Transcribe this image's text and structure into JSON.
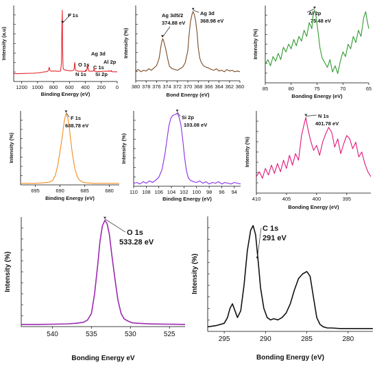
{
  "chart_data": [
    {
      "type": "line",
      "xlabel": "Binding Energy (eV)",
      "ylabel": "Intensity (a.u)",
      "xlim": [
        1300,
        0
      ],
      "xticks": [
        1200,
        1000,
        800,
        600,
        400,
        200,
        0
      ],
      "color": "#e4262b",
      "series": [
        {
          "x": [
            1300,
            1250,
            1200,
            1150,
            1100,
            1050,
            1000,
            980,
            960,
            940,
            920,
            900,
            880,
            870,
            860,
            855,
            850,
            845,
            840,
            830,
            820,
            810,
            800,
            780,
            760,
            740,
            720,
            710,
            700,
            697,
            694,
            690,
            688,
            686,
            682,
            678,
            670,
            660,
            650,
            640,
            630,
            620,
            600,
            580,
            560,
            545,
            540,
            536,
            533,
            530,
            526,
            520,
            510,
            500,
            480,
            460,
            440,
            420,
            400,
            395,
            402,
            398,
            392,
            388,
            384,
            380,
            376,
            374,
            372,
            370,
            368,
            366,
            362,
            360,
            356,
            340,
            320,
            300,
            296,
            293,
            290,
            288,
            286,
            280,
            260,
            240,
            220,
            200,
            180,
            160,
            150,
            110,
            104,
            100,
            90,
            80,
            78,
            75,
            73,
            70,
            60,
            40,
            20,
            0
          ],
          "y": [
            33,
            33,
            33.5,
            34,
            34.5,
            35,
            36,
            37,
            38,
            39,
            40,
            41,
            42,
            44,
            50,
            60,
            55,
            47,
            45,
            44,
            43,
            43,
            44,
            44,
            43,
            43,
            43,
            45,
            80,
            170,
            240,
            300,
            240,
            150,
            80,
            55,
            50,
            49,
            48,
            47,
            47,
            46,
            45,
            45,
            46,
            48,
            56,
            74,
            80,
            72,
            52,
            46,
            45,
            44,
            43,
            43,
            43,
            42,
            42,
            43,
            46,
            48,
            45,
            45,
            48,
            55,
            62,
            70,
            62,
            55,
            70,
            58,
            48,
            45,
            44,
            43,
            43,
            44,
            46,
            52,
            58,
            48,
            44,
            43,
            42,
            42,
            42,
            42,
            43,
            43,
            43,
            43,
            46,
            44,
            43,
            42,
            43,
            47,
            43,
            42,
            41,
            41,
            41,
            40
          ]
        }
      ],
      "annotations": [
        "F 1s",
        "O 1s",
        "N 1s",
        "Ag 3d",
        "C 1s",
        "Si 2p",
        "Al 2p"
      ]
    },
    {
      "type": "line",
      "xlabel": "Bond Energy (eV)",
      "ylabel": "Intensity (%)",
      "xlim": [
        380,
        360
      ],
      "xticks": [
        380,
        378,
        376,
        374,
        372,
        370,
        368,
        366,
        364,
        362,
        360
      ],
      "color": "#7a4a22",
      "series": [
        {
          "x": [
            380,
            379.5,
            379,
            378.5,
            378,
            377.5,
            377,
            376.5,
            376,
            375.5,
            375.2,
            375,
            374.8,
            374.6,
            374.3,
            374,
            373.7,
            373.5,
            373,
            372.5,
            372,
            371.5,
            371,
            370.5,
            370,
            369.8,
            369.5,
            369.2,
            369,
            368.8,
            368.5,
            368.2,
            368,
            367.7,
            367.4,
            367,
            366.5,
            366,
            365.5,
            365,
            364.5,
            364,
            363.5,
            363,
            362.5,
            362,
            361.5,
            361,
            360.5,
            360
          ],
          "y": [
            13,
            15,
            12,
            14,
            13,
            16,
            14,
            17,
            20,
            30,
            44,
            52,
            56,
            52,
            44,
            34,
            24,
            19,
            16,
            15,
            14,
            16,
            18,
            24,
            40,
            58,
            78,
            88,
            92,
            89,
            80,
            62,
            44,
            30,
            24,
            20,
            18,
            17,
            15,
            14,
            16,
            13,
            14,
            12,
            15,
            13,
            14,
            12,
            13,
            12
          ]
        }
      ],
      "annotations": [
        {
          "text": "Ag 3d5/2",
          "x": 374.88
        },
        {
          "text": "374.88 eV",
          "x": 374.88
        },
        {
          "text": "Ag 3d",
          "x": 368.98
        },
        {
          "text": "368.98 eV",
          "x": 368.98
        }
      ]
    },
    {
      "type": "line",
      "xlabel": "Bonding Energy (eV)",
      "ylabel": "Intensity (%)",
      "xlim": [
        85,
        65
      ],
      "xticks": [
        85,
        80,
        75,
        70,
        65
      ],
      "color": "#2f9a2f",
      "series": [
        {
          "x": [
            85,
            84.5,
            84,
            83.5,
            83,
            82.5,
            82,
            81.5,
            81,
            80.5,
            80,
            79.5,
            79,
            78.5,
            78,
            77.5,
            77,
            76.5,
            76,
            75.8,
            75.48,
            75.2,
            75,
            74.7,
            74.4,
            74,
            73.5,
            73,
            72.5,
            72,
            71.5,
            71,
            70.5,
            70,
            69.5,
            69,
            68.5,
            68,
            67.5,
            67,
            66.5,
            66,
            65.6,
            65.3,
            65
          ],
          "y": [
            24,
            30,
            22,
            34,
            28,
            38,
            30,
            46,
            40,
            50,
            44,
            56,
            48,
            60,
            54,
            68,
            60,
            78,
            70,
            86,
            94,
            86,
            76,
            60,
            44,
            32,
            26,
            20,
            30,
            14,
            22,
            12,
            28,
            40,
            34,
            50,
            44,
            60,
            52,
            68,
            60,
            84,
            92,
            80,
            70
          ]
        }
      ],
      "annotations": [
        {
          "text": "Al 2p",
          "x": 75.48
        },
        {
          "text": "75.48 eV",
          "x": 75.48
        }
      ]
    },
    {
      "type": "line",
      "xlabel": "Binding Energy (eV)",
      "ylabel": "Intensity (%)",
      "xlim": [
        698,
        678
      ],
      "xticks": [
        695,
        690,
        685,
        680
      ],
      "color": "#f28c1c",
      "series": [
        {
          "x": [
            698,
            696,
            694,
            693,
            692,
            691.5,
            691,
            690.5,
            690,
            689.5,
            689.2,
            688.9,
            688.78,
            688.5,
            688.2,
            687.9,
            687.5,
            687,
            686.5,
            686,
            685.5,
            685,
            684,
            683,
            682,
            680,
            678
          ],
          "y": [
            2,
            2,
            2.5,
            3,
            4,
            6,
            12,
            25,
            45,
            68,
            84,
            94,
            96,
            92,
            82,
            64,
            42,
            22,
            11,
            6,
            4,
            3,
            2.5,
            2,
            2,
            2,
            2
          ]
        }
      ],
      "annotations": [
        {
          "text": "F 1s",
          "x": 688.78
        },
        {
          "text": "688.78 eV",
          "x": 688.78
        }
      ]
    },
    {
      "type": "line",
      "xlabel": "Binding Energy (eV)",
      "ylabel": "Intensity (%)",
      "xlim": [
        110,
        93
      ],
      "xticks": [
        110,
        108,
        106,
        104,
        102,
        100,
        98,
        96,
        94
      ],
      "color": "#8a2be2",
      "series": [
        {
          "x": [
            110,
            109.5,
            109,
            108.5,
            108,
            107.5,
            107,
            106.5,
            106,
            105.5,
            105,
            104.7,
            104.4,
            104.1,
            103.8,
            103.5,
            103.2,
            103.08,
            102.8,
            102.5,
            102.2,
            101.9,
            101.6,
            101.3,
            101,
            100.5,
            100,
            99.5,
            99,
            98.5,
            98,
            97.5,
            97,
            96.5,
            96,
            95.5,
            95,
            94.5,
            94,
            93.5,
            93
          ],
          "y": [
            4,
            5,
            3,
            6,
            4,
            7,
            5,
            8,
            12,
            22,
            44,
            62,
            80,
            90,
            94,
            95,
            96,
            97,
            92,
            82,
            62,
            38,
            20,
            11,
            8,
            6,
            5,
            7,
            4,
            6,
            3,
            5,
            4,
            6,
            3,
            5,
            4,
            3,
            5,
            4,
            3
          ]
        }
      ],
      "annotations": [
        {
          "text": "Si 2p",
          "x": 103.08
        },
        {
          "text": "103.08 eV",
          "x": 103.08
        }
      ]
    },
    {
      "type": "line",
      "xlabel": "Bonding Energy (eV)",
      "ylabel": "Intensity (%)",
      "xlim": [
        410,
        391
      ],
      "xticks": [
        410,
        405,
        400,
        395
      ],
      "color": "#e0147a",
      "series": [
        {
          "x": [
            410,
            409.5,
            409,
            408.5,
            408,
            407.5,
            407,
            406.5,
            406,
            405.5,
            405,
            404.5,
            404,
            403.5,
            403,
            402.5,
            402,
            401.78,
            401.5,
            401,
            400.5,
            400,
            399.5,
            399,
            398.5,
            398,
            397.5,
            397,
            396.5,
            396,
            395.5,
            395,
            394.5,
            394,
            393.5,
            393,
            392.5,
            392,
            391.5,
            391
          ],
          "y": [
            20,
            26,
            18,
            30,
            22,
            34,
            24,
            36,
            26,
            40,
            30,
            46,
            34,
            48,
            40,
            70,
            86,
            92,
            80,
            64,
            52,
            58,
            46,
            62,
            72,
            80,
            74,
            56,
            66,
            48,
            60,
            70,
            66,
            54,
            62,
            44,
            50,
            36,
            26,
            20
          ]
        }
      ],
      "annotations": [
        {
          "text": "N 1s",
          "x": 401.78
        },
        {
          "text": "401.78 eV",
          "x": 401.78
        }
      ]
    },
    {
      "type": "line",
      "xlabel": "Bonding Energy eV",
      "ylabel": "Intensity (%)",
      "xlim": [
        544,
        523
      ],
      "xticks": [
        540,
        535,
        530,
        525
      ],
      "color": "#9b27b0",
      "series": [
        {
          "x": [
            544,
            542,
            540,
            538,
            537,
            536,
            535.5,
            535,
            534.6,
            534.2,
            533.9,
            533.6,
            533.28,
            533,
            532.7,
            532.4,
            532,
            531.6,
            531.2,
            530.8,
            530.3,
            529.8,
            529,
            528,
            527,
            525,
            523
          ],
          "y": [
            2,
            2,
            2.2,
            2.5,
            3,
            4,
            6,
            12,
            30,
            56,
            78,
            92,
            97,
            94,
            84,
            66,
            44,
            24,
            12,
            7,
            5,
            3.5,
            3,
            2.6,
            2.4,
            2.2,
            2
          ]
        }
      ],
      "annotations": [
        {
          "text": "O 1s",
          "x": 533.28
        },
        {
          "text": "533.28 eV",
          "x": 533.28
        }
      ]
    },
    {
      "type": "line",
      "xlabel": "Bonding Energy (eV)",
      "ylabel": "Intensity (%)",
      "xlim": [
        297,
        277
      ],
      "xticks": [
        295,
        290,
        285,
        280
      ],
      "color": "#111111",
      "series": [
        {
          "x": [
            297,
            296,
            295,
            294.6,
            294.3,
            294,
            293.7,
            293.4,
            293,
            292.6,
            292.2,
            291.8,
            291.5,
            291.2,
            290.9,
            290.6,
            290.2,
            289.8,
            289.4,
            289,
            288.5,
            288,
            287.5,
            287,
            286.5,
            286,
            285.5,
            285,
            284.6,
            284.2,
            283.8,
            283.4,
            283,
            282.5,
            282,
            281,
            280,
            279,
            278,
            277
          ],
          "y": [
            4,
            5,
            7,
            12,
            20,
            24,
            18,
            12,
            18,
            40,
            70,
            88,
            92,
            84,
            62,
            38,
            20,
            12,
            10,
            11,
            10,
            12,
            16,
            24,
            36,
            46,
            50,
            52,
            48,
            30,
            12,
            6,
            4,
            3,
            3,
            2.5,
            2.5,
            2.5,
            2.5,
            2.5
          ]
        }
      ],
      "annotations": [
        {
          "text": "C 1s",
          "x": 291
        },
        {
          "text": "291 eV",
          "x": 291
        }
      ]
    }
  ]
}
